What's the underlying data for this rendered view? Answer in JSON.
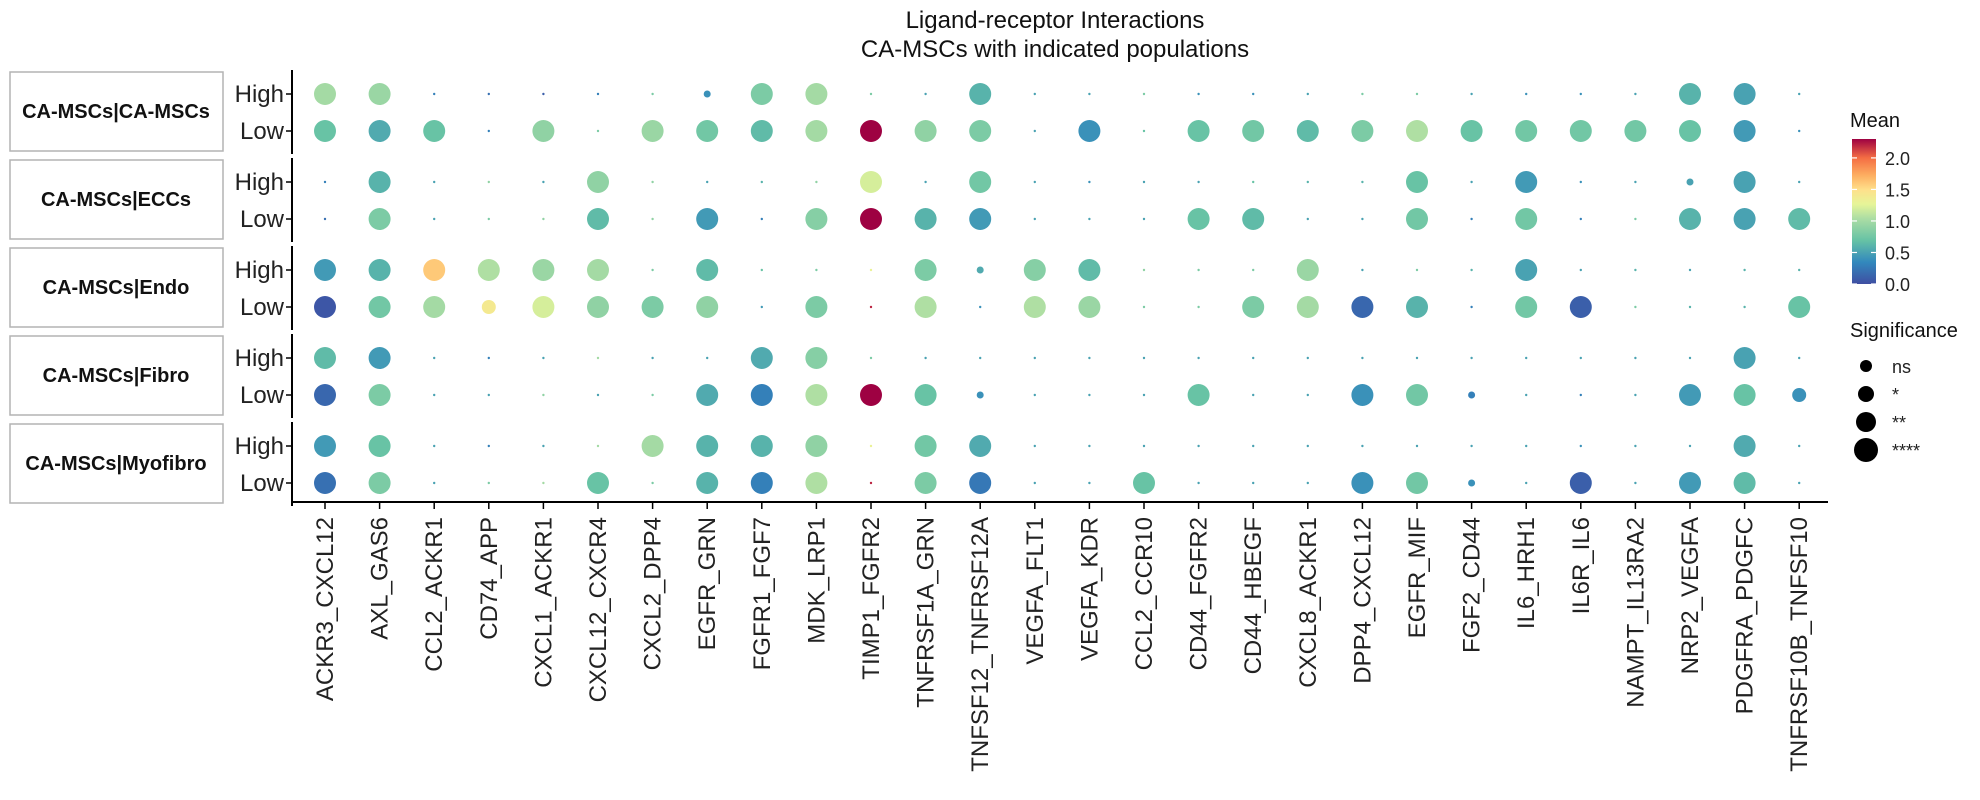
{
  "chart_data": {
    "type": "scatter",
    "title": "Ligand-receptor Interactions",
    "subtitle": "CA-MSCs with indicated populations",
    "x_categories": [
      "ACKR3_CXCL12",
      "AXL_GAS6",
      "CCL2_ACKR1",
      "CD74_APP",
      "CXCL1_ACKR1",
      "CXCL12_CXCR4",
      "CXCL2_DPP4",
      "EGFR_GRN",
      "FGFR1_FGF7",
      "MDK_LRP1",
      "TIMP1_FGFR2",
      "TNFRSF1A_GRN",
      "TNFSF12_TNFRSF12A",
      "VEGFA_FLT1",
      "VEGFA_KDR",
      "CCL2_CCR10",
      "CD44_FGFR2",
      "CD44_HBEGF",
      "CXCL8_ACKR1",
      "DPP4_CXCL12",
      "EGFR_MIF",
      "FGF2_CD44",
      "IL6_HRH1",
      "IL6R_IL6",
      "NAMPT_IL13RA2",
      "NRP2_VEGFA",
      "PDGFRA_PDGFC",
      "TNFRSF10B_TNFSF10"
    ],
    "facets": [
      "CA-MSCs|CA-MSCs",
      "CA-MSCs|ECCs",
      "CA-MSCs|Endo",
      "CA-MSCs|Fibro",
      "CA-MSCs|Myofibro"
    ],
    "row_levels": [
      "High",
      "Low"
    ],
    "color_legend": {
      "title": "Mean",
      "range": [
        0,
        2.3
      ],
      "ticks": [
        "0.0",
        "0.5",
        "1.0",
        "1.5",
        "2.0"
      ],
      "palette": "Spectral (reversed)"
    },
    "size_legend": {
      "title": "Significance",
      "labels": [
        "ns",
        "*",
        "**",
        "****"
      ]
    },
    "size_levels": [
      0,
      1,
      2,
      3,
      4
    ],
    "series": [
      {
        "facet": "CA-MSCs|CA-MSCs",
        "level": "High",
        "mean": [
          1.0,
          0.95,
          0.3,
          0.2,
          0.1,
          0.3,
          0.8,
          0.4,
          0.8,
          1.0,
          0.8,
          0.5,
          0.6,
          0.5,
          0.5,
          0.8,
          0.4,
          0.4,
          0.5,
          0.8,
          0.8,
          0.5,
          0.4,
          0.4,
          0.5,
          0.6,
          0.5,
          0.5
        ],
        "sig": [
          4,
          4,
          0,
          0,
          0,
          0,
          0,
          1,
          4,
          4,
          0,
          0,
          4,
          0,
          0,
          0,
          0,
          0,
          0,
          0,
          0,
          0,
          0,
          0,
          0,
          4,
          4,
          0
        ]
      },
      {
        "facet": "CA-MSCs|CA-MSCs",
        "level": "Low",
        "mean": [
          0.7,
          0.55,
          0.7,
          0.3,
          0.9,
          0.8,
          0.95,
          0.75,
          0.65,
          1.0,
          2.3,
          0.9,
          0.8,
          0.5,
          0.4,
          0.7,
          0.7,
          0.75,
          0.65,
          0.8,
          1.05,
          0.7,
          0.75,
          0.75,
          0.75,
          0.7,
          0.45,
          0.4
        ],
        "sig": [
          4,
          4,
          4,
          0,
          4,
          0,
          4,
          4,
          4,
          4,
          4,
          4,
          4,
          0,
          4,
          0,
          4,
          4,
          4,
          4,
          4,
          4,
          4,
          4,
          4,
          4,
          4,
          0
        ]
      },
      {
        "facet": "CA-MSCs|ECCs",
        "level": "High",
        "mean": [
          0.3,
          0.6,
          0.5,
          0.9,
          0.5,
          0.9,
          0.9,
          0.5,
          0.6,
          0.9,
          1.2,
          0.5,
          0.75,
          0.5,
          0.4,
          0.5,
          0.5,
          0.7,
          0.6,
          0.6,
          0.7,
          0.5,
          0.45,
          0.4,
          0.5,
          0.5,
          0.5,
          0.5
        ],
        "sig": [
          0,
          4,
          0,
          0,
          0,
          4,
          0,
          0,
          0,
          0,
          4,
          0,
          4,
          0,
          0,
          0,
          0,
          0,
          0,
          0,
          4,
          0,
          4,
          0,
          0,
          1,
          4,
          0
        ]
      },
      {
        "facet": "CA-MSCs|ECCs",
        "level": "Low",
        "mean": [
          0.2,
          0.8,
          0.5,
          0.8,
          0.9,
          0.65,
          0.9,
          0.45,
          0.3,
          0.85,
          2.3,
          0.6,
          0.45,
          0.5,
          0.5,
          0.5,
          0.7,
          0.65,
          0.5,
          0.5,
          0.75,
          0.3,
          0.75,
          0.3,
          0.8,
          0.6,
          0.5,
          0.65
        ],
        "sig": [
          0,
          4,
          0,
          0,
          0,
          4,
          0,
          4,
          0,
          4,
          4,
          4,
          4,
          0,
          0,
          0,
          4,
          4,
          0,
          0,
          4,
          0,
          4,
          0,
          0,
          4,
          4,
          4
        ]
      },
      {
        "facet": "CA-MSCs|Endo",
        "level": "High",
        "mean": [
          0.45,
          0.6,
          1.6,
          1.05,
          0.95,
          1.0,
          0.8,
          0.65,
          0.7,
          0.8,
          1.3,
          0.8,
          0.55,
          0.85,
          0.65,
          0.9,
          0.8,
          0.8,
          0.95,
          0.5,
          0.8,
          0.6,
          0.5,
          0.5,
          0.6,
          0.5,
          0.6,
          0.6
        ],
        "sig": [
          4,
          4,
          4,
          4,
          4,
          4,
          0,
          4,
          0,
          0,
          0,
          4,
          1,
          4,
          4,
          0,
          0,
          0,
          4,
          0,
          0,
          0,
          4,
          0,
          0,
          0,
          0,
          0
        ]
      },
      {
        "facet": "CA-MSCs|Endo",
        "level": "Low",
        "mean": [
          0.05,
          0.75,
          1.0,
          1.4,
          1.2,
          0.9,
          0.8,
          0.9,
          0.45,
          0.8,
          2.2,
          1.05,
          0.4,
          1.05,
          0.95,
          0.8,
          0.8,
          0.8,
          1.0,
          0.15,
          0.6,
          0.3,
          0.75,
          0.1,
          0.8,
          0.6,
          0.6,
          0.7
        ],
        "sig": [
          4,
          4,
          4,
          2,
          4,
          4,
          4,
          4,
          0,
          4,
          0,
          4,
          0,
          4,
          4,
          0,
          0,
          4,
          4,
          4,
          4,
          0,
          4,
          4,
          0,
          0,
          0,
          4
        ]
      },
      {
        "facet": "CA-MSCs|Fibro",
        "level": "High",
        "mean": [
          0.65,
          0.45,
          0.5,
          0.3,
          0.5,
          1.0,
          0.5,
          0.5,
          0.55,
          0.85,
          0.8,
          0.5,
          0.5,
          0.5,
          0.5,
          0.5,
          0.5,
          0.5,
          0.5,
          0.5,
          0.5,
          0.5,
          0.5,
          0.5,
          0.5,
          0.5,
          0.5,
          0.5
        ],
        "sig": [
          4,
          4,
          0,
          0,
          0,
          0,
          0,
          0,
          4,
          4,
          0,
          0,
          0,
          0,
          0,
          0,
          0,
          0,
          0,
          0,
          0,
          0,
          0,
          0,
          0,
          0,
          4,
          0
        ]
      },
      {
        "facet": "CA-MSCs|Fibro",
        "level": "Low",
        "mean": [
          0.15,
          0.8,
          0.5,
          0.5,
          0.9,
          0.5,
          0.8,
          0.55,
          0.3,
          1.05,
          2.3,
          0.7,
          0.4,
          0.5,
          0.5,
          0.5,
          0.7,
          0.5,
          0.5,
          0.4,
          0.75,
          0.3,
          0.5,
          0.3,
          0.5,
          0.45,
          0.7,
          0.4
        ],
        "sig": [
          4,
          4,
          0,
          0,
          0,
          0,
          0,
          4,
          4,
          4,
          4,
          4,
          1,
          0,
          0,
          0,
          4,
          0,
          0,
          4,
          4,
          1,
          0,
          0,
          0,
          4,
          4,
          2
        ]
      },
      {
        "facet": "CA-MSCs|Myofibro",
        "level": "High",
        "mean": [
          0.45,
          0.7,
          0.5,
          0.3,
          0.5,
          1.0,
          1.0,
          0.6,
          0.6,
          0.9,
          1.3,
          0.75,
          0.55,
          0.5,
          0.5,
          0.5,
          0.5,
          0.5,
          0.5,
          0.5,
          0.5,
          0.5,
          0.5,
          0.4,
          0.5,
          0.5,
          0.55,
          0.5
        ],
        "sig": [
          4,
          4,
          0,
          0,
          0,
          0,
          4,
          4,
          4,
          4,
          0,
          4,
          4,
          0,
          0,
          0,
          0,
          0,
          0,
          0,
          0,
          0,
          0,
          0,
          0,
          0,
          4,
          0
        ]
      },
      {
        "facet": "CA-MSCs|Myofibro",
        "level": "Low",
        "mean": [
          0.2,
          0.8,
          0.5,
          0.8,
          1.0,
          0.7,
          0.8,
          0.6,
          0.3,
          1.05,
          2.2,
          0.8,
          0.25,
          0.5,
          0.5,
          0.7,
          0.5,
          0.5,
          0.5,
          0.4,
          0.75,
          0.4,
          0.5,
          0.1,
          0.5,
          0.45,
          0.65,
          0.5
        ],
        "sig": [
          4,
          4,
          0,
          0,
          0,
          4,
          0,
          4,
          4,
          4,
          0,
          4,
          4,
          0,
          0,
          4,
          0,
          0,
          0,
          4,
          4,
          1,
          0,
          4,
          0,
          4,
          4,
          0
        ]
      }
    ]
  }
}
